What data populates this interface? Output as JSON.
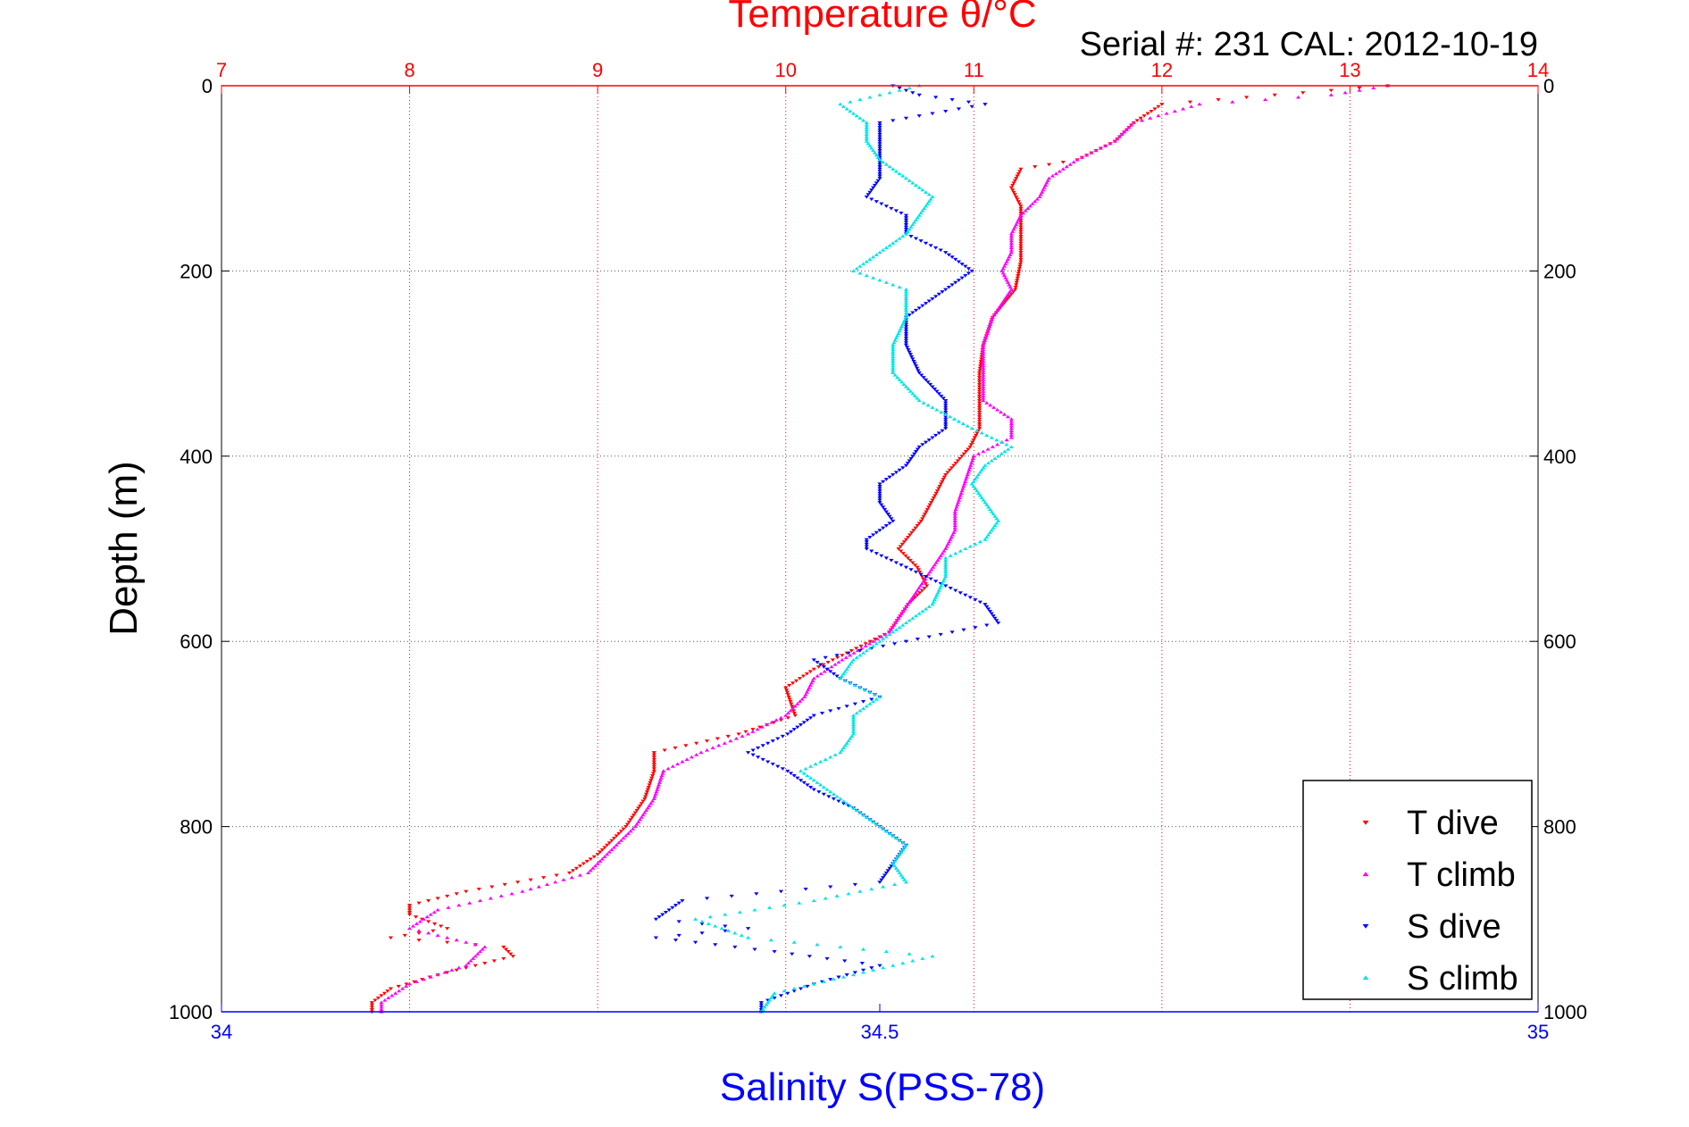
{
  "chart_data": {
    "type": "scatter",
    "title": "Temperature θ/°C",
    "subtitle": "Serial #: 231  CAL: 2012-10-19",
    "ylabel": "Depth (m)",
    "xlabel": "Salinity S(PSS-78)",
    "y_axis": {
      "min": 0,
      "max": 1000,
      "reversed": true,
      "ticks": [
        0,
        200,
        400,
        600,
        800,
        1000
      ],
      "tick_labels": [
        "0",
        "200",
        "400",
        "600",
        "800",
        "1000"
      ]
    },
    "x_axis_temperature": {
      "min": 7,
      "max": 14,
      "position": "top",
      "ticks": [
        7,
        8,
        9,
        10,
        11,
        12,
        13,
        14
      ],
      "tick_labels": [
        "7",
        "8",
        "9",
        "10",
        "11",
        "12",
        "13",
        "14"
      ]
    },
    "x_axis_salinity": {
      "min": 34,
      "max": 35,
      "position": "bottom",
      "ticks": [
        34,
        34.5,
        35
      ],
      "tick_labels": [
        "34",
        "34.5",
        "35"
      ]
    },
    "grid": true,
    "legend_position": "bottom-right",
    "legend": [
      "T dive",
      "T climb",
      "S dive",
      "S climb"
    ],
    "colors": {
      "t_axis": "#ff0000",
      "s_axis": "#0000ff",
      "t_dive": "#ff0000",
      "t_climb": "#ff00ff",
      "s_dive": "#0000ff",
      "s_climb": "#00e5e5",
      "grid": "#555555"
    },
    "series": [
      {
        "name": "T dive",
        "axis": "temperature",
        "marker": "triangle-down",
        "color": "#ff0000",
        "depth": [
          0,
          10,
          20,
          40,
          60,
          80,
          90,
          110,
          130,
          160,
          190,
          220,
          250,
          280,
          310,
          340,
          370,
          390,
          420,
          440,
          470,
          500,
          520,
          540,
          560,
          590,
          610,
          630,
          650,
          680,
          700,
          720,
          740,
          770,
          800,
          830,
          850,
          870,
          885,
          895,
          910,
          920,
          930,
          940,
          960,
          975,
          990,
          1000
        ],
        "temp": [
          13.2,
          12.6,
          12.0,
          11.85,
          11.75,
          11.55,
          11.25,
          11.2,
          11.25,
          11.25,
          11.25,
          11.22,
          11.1,
          11.05,
          11.03,
          11.03,
          11.03,
          10.98,
          10.85,
          10.8,
          10.72,
          10.6,
          10.7,
          10.75,
          10.65,
          10.55,
          10.35,
          10.15,
          10.0,
          10.05,
          9.75,
          9.3,
          9.3,
          9.25,
          9.15,
          9.0,
          8.85,
          8.3,
          8.0,
          8.0,
          8.2,
          7.9,
          8.5,
          8.55,
          8.15,
          7.9,
          7.8,
          7.8
        ]
      },
      {
        "name": "T climb",
        "axis": "temperature",
        "marker": "triangle-up",
        "color": "#ff00ff",
        "depth": [
          0,
          10,
          20,
          40,
          60,
          80,
          100,
          120,
          140,
          160,
          180,
          200,
          220,
          250,
          280,
          310,
          340,
          360,
          380,
          400,
          430,
          460,
          480,
          500,
          530,
          560,
          590,
          620,
          640,
          660,
          680,
          700,
          720,
          740,
          770,
          800,
          830,
          850,
          870,
          890,
          910,
          930,
          950,
          970,
          990,
          1000
        ],
        "temp": [
          13.2,
          12.9,
          12.2,
          11.85,
          11.75,
          11.55,
          11.4,
          11.35,
          11.25,
          11.2,
          11.2,
          11.15,
          11.2,
          11.1,
          11.05,
          11.05,
          11.05,
          11.2,
          11.2,
          11.0,
          10.95,
          10.9,
          10.9,
          10.85,
          10.75,
          10.65,
          10.55,
          10.3,
          10.15,
          10.1,
          10.0,
          9.8,
          9.55,
          9.35,
          9.3,
          9.2,
          9.05,
          8.95,
          8.6,
          8.15,
          8.0,
          8.4,
          8.3,
          8.0,
          7.85,
          7.85
        ]
      },
      {
        "name": "S dive",
        "axis": "salinity",
        "marker": "triangle-down",
        "color": "#0000ff",
        "depth": [
          0,
          10,
          20,
          40,
          60,
          80,
          100,
          120,
          140,
          160,
          180,
          200,
          220,
          250,
          280,
          310,
          340,
          370,
          390,
          410,
          430,
          450,
          470,
          490,
          500,
          520,
          540,
          560,
          580,
          600,
          620,
          640,
          660,
          680,
          700,
          720,
          740,
          760,
          780,
          800,
          820,
          840,
          860,
          880,
          900,
          910,
          920,
          935,
          950,
          970,
          990,
          1000
        ],
        "sal": [
          34.51,
          34.53,
          34.58,
          34.5,
          34.5,
          34.5,
          34.5,
          34.49,
          34.52,
          34.52,
          34.55,
          34.57,
          34.55,
          34.52,
          34.52,
          34.53,
          34.55,
          34.55,
          34.53,
          34.52,
          34.5,
          34.5,
          34.51,
          34.49,
          34.49,
          34.52,
          34.55,
          34.58,
          34.59,
          34.52,
          34.45,
          34.47,
          34.5,
          34.45,
          34.43,
          34.4,
          34.43,
          34.45,
          34.48,
          34.5,
          34.52,
          34.51,
          34.5,
          34.35,
          34.33,
          34.4,
          34.33,
          34.42,
          34.5,
          34.45,
          34.41,
          34.41
        ]
      },
      {
        "name": "S climb",
        "axis": "salinity",
        "marker": "triangle-up",
        "color": "#00e5e5",
        "depth": [
          0,
          10,
          20,
          40,
          60,
          80,
          100,
          120,
          140,
          160,
          180,
          200,
          220,
          250,
          280,
          310,
          340,
          370,
          390,
          410,
          430,
          450,
          470,
          490,
          510,
          530,
          560,
          580,
          600,
          620,
          640,
          660,
          680,
          700,
          720,
          740,
          760,
          780,
          800,
          820,
          840,
          860,
          880,
          900,
          920,
          940,
          960,
          980,
          1000
        ],
        "sal": [
          34.53,
          34.5,
          34.47,
          34.49,
          34.49,
          34.5,
          34.52,
          34.54,
          34.53,
          34.52,
          34.5,
          34.48,
          34.52,
          34.52,
          34.51,
          34.51,
          34.53,
          34.57,
          34.6,
          34.58,
          34.57,
          34.58,
          34.59,
          34.58,
          34.55,
          34.55,
          34.54,
          34.52,
          34.5,
          34.48,
          34.47,
          34.5,
          34.48,
          34.48,
          34.47,
          34.44,
          34.46,
          34.48,
          34.5,
          34.52,
          34.51,
          34.52,
          34.45,
          34.36,
          34.4,
          34.54,
          34.48,
          34.42,
          34.41
        ]
      }
    ]
  }
}
